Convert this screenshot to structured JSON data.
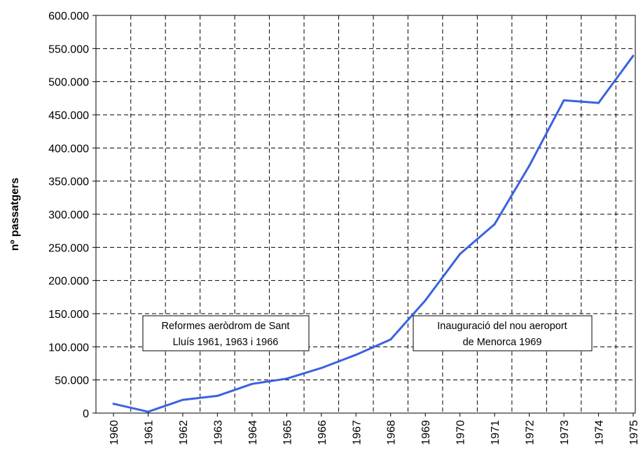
{
  "chart_data": {
    "type": "line",
    "title": "",
    "xlabel": "",
    "ylabel": "nº passatgers",
    "categories": [
      "1960",
      "1961",
      "1962",
      "1963",
      "1964",
      "1965",
      "1966",
      "1967",
      "1968",
      "1969",
      "1970",
      "1971",
      "1972",
      "1973",
      "1974",
      "1975"
    ],
    "series": [
      {
        "color": "#3a62e0",
        "values": [
          14000,
          2000,
          20000,
          26000,
          44000,
          52000,
          68000,
          88000,
          111000,
          170000,
          240000,
          285000,
          373000,
          472000,
          468000,
          539000
        ]
      }
    ],
    "ylim": [
      0,
      600000
    ],
    "yticks": [
      0,
      50000,
      100000,
      150000,
      200000,
      250000,
      300000,
      350000,
      400000,
      450000,
      500000,
      550000,
      600000
    ],
    "ytick_labels": [
      "0",
      "50.000",
      "100.000",
      "150.000",
      "200.000",
      "250.000",
      "300.000",
      "350.000",
      "400.000",
      "450.000",
      "500.000",
      "550.000",
      "600.000"
    ],
    "grid": true,
    "legend": "none",
    "annotations": [
      {
        "lines": [
          "Reformes aeròdrom de Sant",
          "Lluís 1961, 1963 i 1966"
        ]
      },
      {
        "lines": [
          "Inauguració del nou aeroport",
          "de Menorca 1969"
        ]
      }
    ]
  }
}
